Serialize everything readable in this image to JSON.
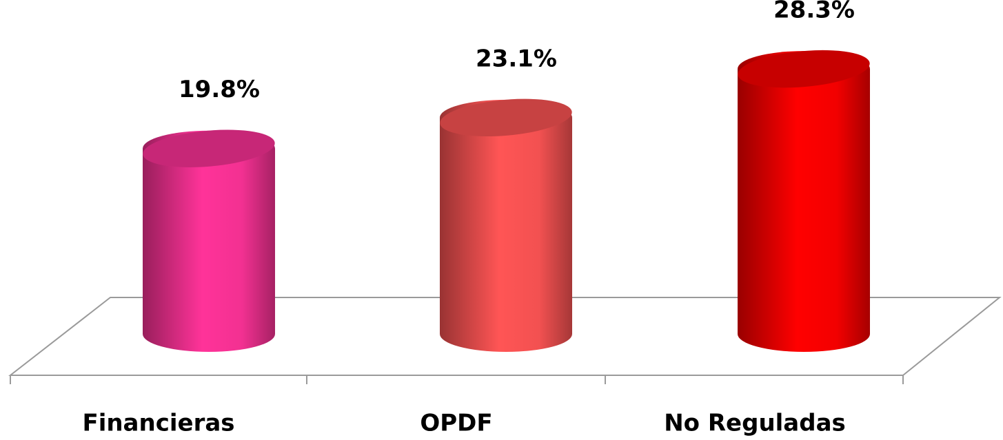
{
  "chart_data": {
    "type": "bar",
    "categories": [
      "Financieras",
      "OPDF",
      "No Reguladas"
    ],
    "values": [
      19.8,
      23.1,
      28.3
    ],
    "value_labels": [
      "19.8%",
      "23.1%",
      "28.3%"
    ],
    "colors": [
      "#ff3399",
      "#ff5555",
      "#ff0000"
    ]
  }
}
